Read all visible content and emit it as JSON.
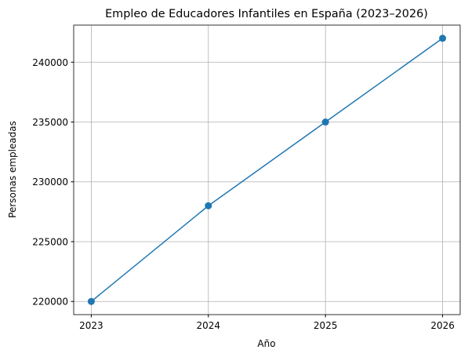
{
  "chart_data": {
    "type": "line",
    "title": "Empleo de Educadores Infantiles en España (2023–2026)",
    "xlabel": "Año",
    "ylabel": "Personas empleadas",
    "x": [
      2023,
      2024,
      2025,
      2026
    ],
    "series": [
      {
        "name": "Personas empleadas",
        "color": "#1f77b4",
        "values": [
          220000,
          228000,
          235000,
          242000
        ]
      }
    ],
    "xlim": [
      2022.85,
      2026.15
    ],
    "xticks": [
      2023,
      2024,
      2025,
      2026
    ],
    "ylim": [
      218900,
      243100
    ],
    "yticks": [
      220000,
      225000,
      230000,
      235000,
      240000
    ],
    "grid": true,
    "marker": "circle"
  }
}
